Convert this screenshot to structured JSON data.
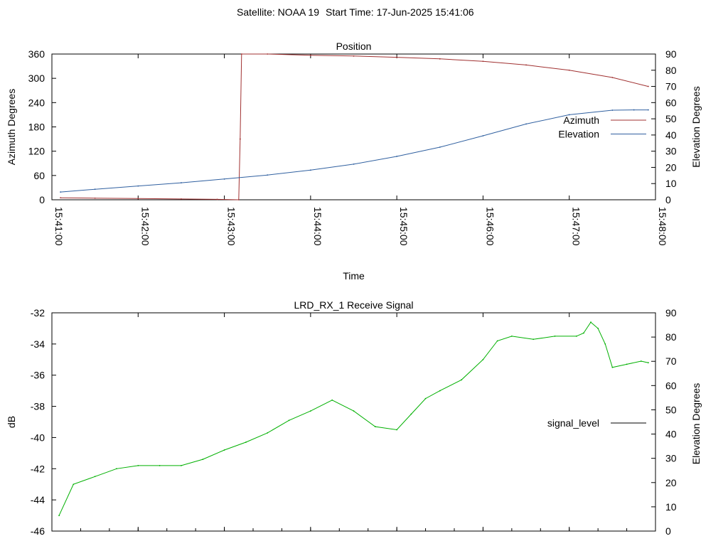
{
  "header": {
    "satellite": "Satellite: NOAA 19",
    "start_time": "Start Time: 17-Jun-2025 15:41:06"
  },
  "chart_data": [
    {
      "type": "line",
      "title": "Position",
      "xlabel": "Time",
      "ylabel": "Azimuth Degrees",
      "y2label": "Elevation Degrees",
      "xlim": [
        "15:41:00",
        "15:48:00"
      ],
      "ylim": [
        0,
        360
      ],
      "y2lim": [
        0,
        90
      ],
      "x_ticks": [
        "15:41:00",
        "15:42:00",
        "15:43:00",
        "15:44:00",
        "15:45:00",
        "15:46:00",
        "15:47:00",
        "15:48:00"
      ],
      "y_ticks": [
        0,
        60,
        120,
        180,
        240,
        300,
        360
      ],
      "y2_ticks": [
        0,
        10,
        20,
        30,
        40,
        50,
        60,
        70,
        80,
        90
      ],
      "legend_position": "right",
      "grid": false,
      "series": [
        {
          "name": "Azimuth",
          "axis": "left",
          "color": "#a03030",
          "x": [
            "15:41:06",
            "15:41:30",
            "15:42:00",
            "15:42:30",
            "15:42:55",
            "15:43:10",
            "15:43:11",
            "15:43:12",
            "15:43:30",
            "15:44:00",
            "15:44:30",
            "15:45:00",
            "15:45:30",
            "15:46:00",
            "15:46:30",
            "15:47:00",
            "15:47:30",
            "15:47:55"
          ],
          "values": [
            5,
            4,
            3,
            2,
            1,
            0,
            150,
            360,
            360,
            357,
            355,
            352,
            348,
            342,
            333,
            320,
            302,
            280
          ]
        },
        {
          "name": "Elevation",
          "axis": "right",
          "color": "#3060a0",
          "x": [
            "15:41:06",
            "15:41:30",
            "15:42:00",
            "15:42:30",
            "15:43:00",
            "15:43:30",
            "15:44:00",
            "15:44:30",
            "15:45:00",
            "15:45:30",
            "15:46:00",
            "15:46:30",
            "15:47:00",
            "15:47:30",
            "15:47:45",
            "15:47:55"
          ],
          "values": [
            4.8,
            6.5,
            8.5,
            10.5,
            12.8,
            15.3,
            18.3,
            22,
            26.8,
            32.5,
            39.5,
            46.8,
            52.5,
            55.3,
            55.5,
            55.5
          ]
        }
      ]
    },
    {
      "type": "line",
      "title": "LRD_RX_1 Receive Signal",
      "xlabel": "",
      "ylabel": "dB",
      "y2label": "Elevation Degrees",
      "xlim": [
        "15:41:00",
        "15:48:00"
      ],
      "ylim": [
        -46,
        -32
      ],
      "y2lim": [
        0,
        90
      ],
      "y_ticks": [
        -46,
        -44,
        -42,
        -40,
        -38,
        -36,
        -34,
        -32
      ],
      "y2_ticks": [
        0,
        10,
        20,
        30,
        40,
        50,
        60,
        70,
        80,
        90
      ],
      "legend_position": "right",
      "grid": false,
      "series": [
        {
          "name": "signal_level",
          "axis": "left",
          "color": "#00b000",
          "x": [
            "15:41:05",
            "15:41:15",
            "15:41:30",
            "15:41:45",
            "15:42:00",
            "15:42:15",
            "15:42:30",
            "15:42:45",
            "15:43:00",
            "15:43:15",
            "15:43:30",
            "15:43:45",
            "15:44:00",
            "15:44:15",
            "15:44:30",
            "15:44:45",
            "15:45:00",
            "15:45:10",
            "15:45:20",
            "15:45:30",
            "15:45:45",
            "15:46:00",
            "15:46:10",
            "15:46:20",
            "15:46:35",
            "15:46:50",
            "15:47:05",
            "15:47:10",
            "15:47:15",
            "15:47:20",
            "15:47:25",
            "15:47:30",
            "15:47:40",
            "15:47:50",
            "15:47:55"
          ],
          "values": [
            -45,
            -43,
            -42.5,
            -42,
            -41.8,
            -41.8,
            -41.8,
            -41.4,
            -40.8,
            -40.3,
            -39.7,
            -38.9,
            -38.3,
            -37.6,
            -38.3,
            -39.3,
            -39.5,
            -38.5,
            -37.5,
            -37,
            -36.3,
            -35,
            -33.8,
            -33.5,
            -33.7,
            -33.5,
            -33.5,
            -33.3,
            -32.6,
            -33,
            -34,
            -35.5,
            -35.3,
            -35.1,
            -35.2
          ]
        }
      ]
    }
  ]
}
